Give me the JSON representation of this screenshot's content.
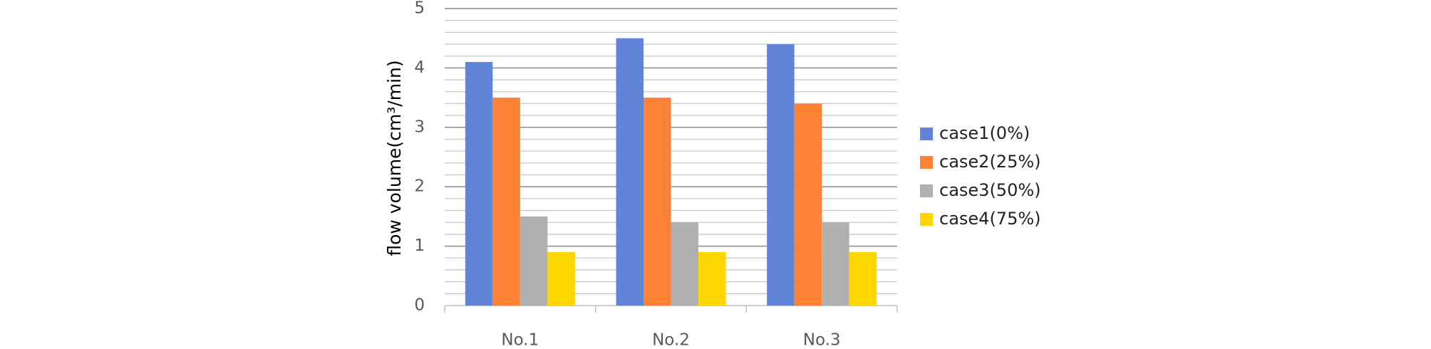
{
  "chart_data": {
    "type": "bar",
    "y_label": "flow volume(cm³/min)",
    "categories": [
      "No.1",
      "No.2",
      "No.3"
    ],
    "series": [
      {
        "name": "case1(0%)",
        "color": "#6184d8",
        "values": [
          4.1,
          4.5,
          4.4
        ]
      },
      {
        "name": "case2(25%)",
        "color": "#fe8236",
        "values": [
          3.5,
          3.5,
          3.4
        ]
      },
      {
        "name": "case3(50%)",
        "color": "#b0b0b0",
        "values": [
          1.5,
          1.4,
          1.4
        ]
      },
      {
        "name": "case4(75%)",
        "color": "#ffd700",
        "values": [
          0.9,
          0.9,
          0.9
        ]
      }
    ],
    "ylim": [
      0,
      5
    ],
    "yticks": [
      0,
      1,
      2,
      3,
      4,
      5
    ],
    "grid": true,
    "minor_grid_divisions": 5,
    "legend": "right"
  }
}
